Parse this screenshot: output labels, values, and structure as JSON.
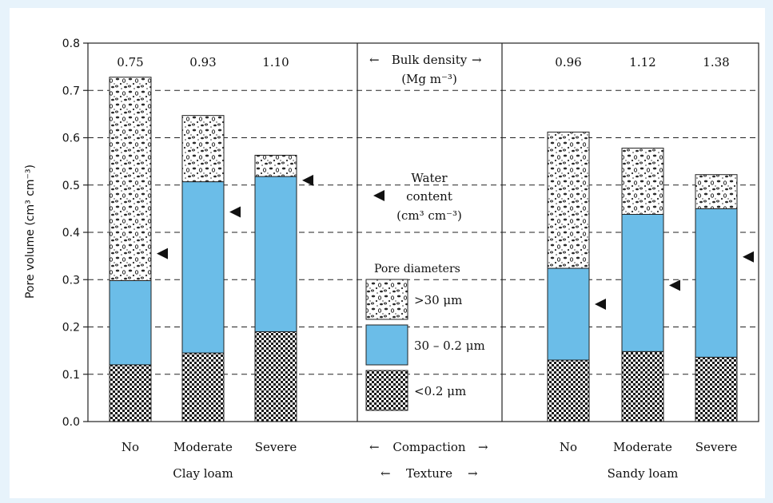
{
  "chart_data": {
    "type": "bar",
    "stacked": true,
    "ylabel": "Pore volume (cm³ cm⁻³)",
    "ylim": [
      0,
      0.8
    ],
    "yticks": [
      "0.0",
      "0.1",
      "0.2",
      "0.3",
      "0.4",
      "0.5",
      "0.6",
      "0.7",
      "0.8"
    ],
    "grid": "dashed horizontal",
    "categories": [
      "No",
      "Moderate",
      "Severe",
      "No",
      "Moderate",
      "Severe"
    ],
    "textures": [
      "Clay loam",
      "Sandy loam"
    ],
    "bulk_density": [
      "0.75",
      "0.93",
      "1.10",
      "0.96",
      "1.12",
      "1.38"
    ],
    "series": [
      {
        "name": "<0.2 μm",
        "values": [
          0.12,
          0.145,
          0.19,
          0.13,
          0.148,
          0.136
        ]
      },
      {
        "name": "30 – 0.2 μm",
        "values": [
          0.178,
          0.362,
          0.328,
          0.194,
          0.29,
          0.314
        ]
      },
      {
        "name": ">30 μm",
        "values": [
          0.43,
          0.14,
          0.045,
          0.288,
          0.14,
          0.072
        ]
      }
    ],
    "water_content": [
      0.355,
      0.443,
      0.51,
      0.248,
      0.288,
      0.348
    ],
    "center_panel": {
      "bulk_density_label": "Bulk density",
      "bulk_density_unit": "(Mg m⁻³)",
      "water_label_1": "Water",
      "water_label_2": "content",
      "water_unit": "(cm³ cm⁻³)",
      "pore_title": "Pore diameters",
      "compaction_label": "Compaction",
      "texture_label": "Texture"
    },
    "colors": {
      "background": "#e7f3fb",
      "blue": "#6bbde8",
      "outline": "#222222"
    }
  }
}
